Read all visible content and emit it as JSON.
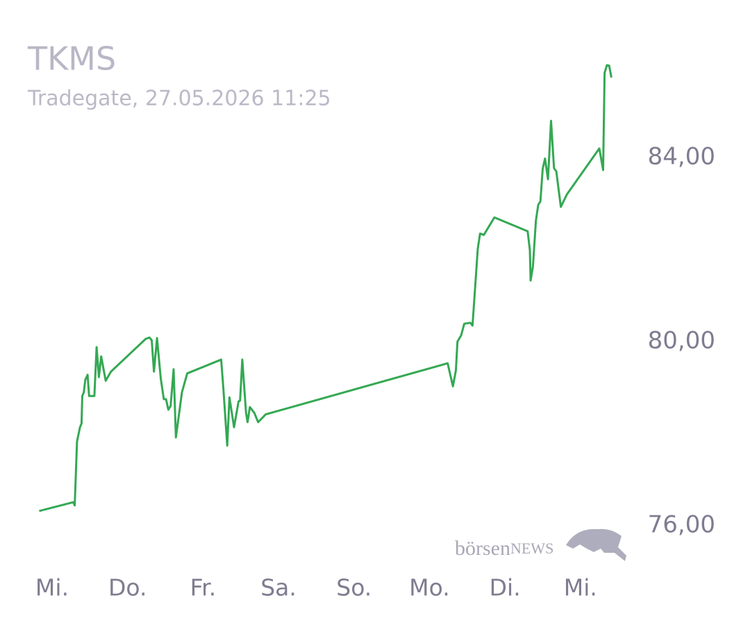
{
  "chart_data": {
    "type": "line",
    "title": "TKMS",
    "subtitle": "Tradegate, 27.05.2026 11:25",
    "watermark": [
      "börsen",
      "NEWS"
    ],
    "color": "#34a853",
    "x": [
      -0.17,
      0.28,
      0.3,
      0.33,
      0.37,
      0.39,
      0.4,
      0.42,
      0.44,
      0.47,
      0.49,
      0.56,
      0.59,
      0.62,
      0.65,
      0.71,
      0.78,
      1.24,
      1.29,
      1.32,
      1.35,
      1.39,
      1.44,
      1.48,
      1.51,
      1.54,
      1.57,
      1.61,
      1.64,
      1.72,
      1.79,
      2.24,
      2.27,
      2.32,
      2.35,
      2.41,
      2.47,
      2.49,
      2.52,
      2.57,
      2.59,
      2.62,
      2.68,
      2.73,
      2.83,
      5.24,
      5.31,
      5.35,
      5.37,
      5.42,
      5.46,
      5.54,
      5.57,
      5.64,
      5.67,
      5.72,
      5.86,
      6.3,
      6.33,
      6.34,
      6.37,
      6.41,
      6.44,
      6.47,
      6.5,
      6.53,
      6.57,
      6.61,
      6.65,
      6.68,
      6.74,
      6.82,
      7.25,
      7.3,
      7.32,
      7.35,
      7.38,
      7.41
    ],
    "values": [
      76.32,
      76.51,
      76.44,
      77.83,
      78.14,
      78.22,
      78.82,
      78.9,
      79.17,
      79.28,
      78.82,
      78.82,
      79.88,
      79.23,
      79.68,
      79.15,
      79.35,
      80.06,
      80.09,
      80.03,
      79.35,
      80.08,
      79.2,
      78.75,
      78.75,
      78.52,
      78.6,
      79.4,
      77.92,
      78.9,
      79.31,
      79.61,
      78.97,
      77.74,
      78.79,
      78.14,
      78.7,
      78.72,
      79.61,
      78.45,
      78.25,
      78.58,
      78.45,
      78.25,
      78.42,
      79.53,
      79.03,
      79.38,
      80.0,
      80.14,
      80.39,
      80.41,
      80.35,
      82.02,
      82.35,
      82.32,
      82.7,
      82.4,
      81.99,
      81.33,
      81.63,
      82.63,
      82.97,
      83.05,
      83.76,
      83.98,
      83.53,
      84.8,
      83.77,
      83.7,
      82.93,
      83.2,
      84.2,
      83.73,
      85.84,
      86.01,
      86.0,
      85.74
    ],
    "xlim": [
      -0.3,
      7.5
    ],
    "xticks": [
      {
        "value": 0,
        "label": "Mi."
      },
      {
        "value": 1,
        "label": "Do."
      },
      {
        "value": 2,
        "label": "Fr."
      },
      {
        "value": 3,
        "label": "Sa."
      },
      {
        "value": 4,
        "label": "So."
      },
      {
        "value": 5,
        "label": "Mo."
      },
      {
        "value": 6,
        "label": "Di."
      },
      {
        "value": 7,
        "label": "Mi."
      }
    ],
    "ylim": [
      75.5,
      86.5
    ],
    "yticks": [
      {
        "value": 76,
        "label": "76,00"
      },
      {
        "value": 80,
        "label": "80,00"
      },
      {
        "value": 84,
        "label": "84,00"
      }
    ]
  }
}
